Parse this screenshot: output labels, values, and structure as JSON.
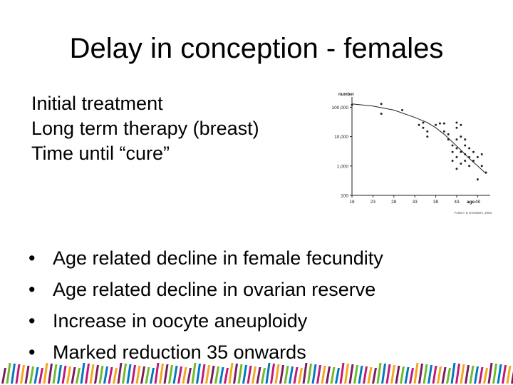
{
  "slide": {
    "title": "Delay in conception - females",
    "intro_lines": [
      "Initial treatment",
      "Long term therapy (breast)",
      "Time until “cure”"
    ],
    "bullet_symbol": "•",
    "bullets": [
      "Age related decline in female fecundity",
      "Age related decline in ovarian reserve",
      "Increase in oocyte aneuploidy",
      "Marked reduction 35 onwards"
    ]
  },
  "chart_data": {
    "type": "scatter",
    "ylabel": "number",
    "xlabel": "age",
    "x_ticks": [
      18,
      23,
      28,
      33,
      38,
      43,
      48
    ],
    "xlim": [
      18,
      51
    ],
    "y_ticks": [
      100,
      1000,
      10000,
      100000
    ],
    "y_tick_labels": [
      "100",
      "1,000",
      "10,000",
      "100,000"
    ],
    "ylim": [
      100,
      200000
    ],
    "y_scale": "log",
    "credit": "FADDY & GOSDEN, 1993",
    "points": [
      {
        "x": 18,
        "y": 120000
      },
      {
        "x": 25,
        "y": 130000
      },
      {
        "x": 25,
        "y": 60000
      },
      {
        "x": 30,
        "y": 80000
      },
      {
        "x": 34,
        "y": 25000
      },
      {
        "x": 35,
        "y": 30000
      },
      {
        "x": 35,
        "y": 20000
      },
      {
        "x": 36,
        "y": 15000
      },
      {
        "x": 36,
        "y": 10000
      },
      {
        "x": 38,
        "y": 25000
      },
      {
        "x": 39,
        "y": 28000
      },
      {
        "x": 40,
        "y": 28000
      },
      {
        "x": 40,
        "y": 15000
      },
      {
        "x": 41,
        "y": 12000
      },
      {
        "x": 41,
        "y": 8000
      },
      {
        "x": 42,
        "y": 5000
      },
      {
        "x": 42,
        "y": 3000
      },
      {
        "x": 42,
        "y": 1500
      },
      {
        "x": 43,
        "y": 30000
      },
      {
        "x": 43,
        "y": 20000
      },
      {
        "x": 43,
        "y": 8000
      },
      {
        "x": 43,
        "y": 4000
      },
      {
        "x": 43,
        "y": 2000
      },
      {
        "x": 43,
        "y": 800
      },
      {
        "x": 44,
        "y": 25000
      },
      {
        "x": 44,
        "y": 10000
      },
      {
        "x": 44,
        "y": 3000
      },
      {
        "x": 44,
        "y": 1200
      },
      {
        "x": 45,
        "y": 8000
      },
      {
        "x": 45,
        "y": 5000
      },
      {
        "x": 45,
        "y": 2500
      },
      {
        "x": 45,
        "y": 1500
      },
      {
        "x": 46,
        "y": 4000
      },
      {
        "x": 46,
        "y": 2000
      },
      {
        "x": 46,
        "y": 1000
      },
      {
        "x": 47,
        "y": 3000
      },
      {
        "x": 47,
        "y": 1500
      },
      {
        "x": 48,
        "y": 2000
      },
      {
        "x": 48,
        "y": 350
      },
      {
        "x": 49,
        "y": 2500
      },
      {
        "x": 49,
        "y": 1000
      },
      {
        "x": 50,
        "y": 600
      }
    ],
    "fit_curve": [
      {
        "x": 18,
        "y": 130000
      },
      {
        "x": 23,
        "y": 110000
      },
      {
        "x": 28,
        "y": 80000
      },
      {
        "x": 33,
        "y": 45000
      },
      {
        "x": 36,
        "y": 30000
      },
      {
        "x": 38,
        "y": 20000
      },
      {
        "x": 40,
        "y": 12000
      },
      {
        "x": 42,
        "y": 6500
      },
      {
        "x": 44,
        "y": 3500
      },
      {
        "x": 46,
        "y": 1800
      },
      {
        "x": 48,
        "y": 1000
      },
      {
        "x": 50,
        "y": 550
      }
    ]
  },
  "colors": {
    "text": "#000000",
    "chart_ink": "#222222",
    "stripes": [
      "#7b1c62",
      "#c2187a",
      "#4a2a78",
      "#6dbb2b",
      "#f0a81c",
      "#d2232a",
      "#0078bf",
      "#b5b0aa"
    ]
  }
}
